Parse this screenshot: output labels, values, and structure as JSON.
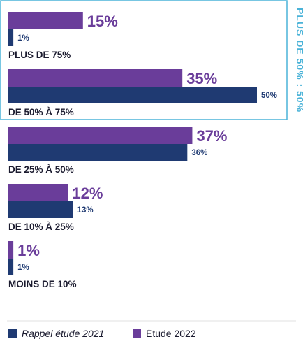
{
  "colors": {
    "series_2022": "#6a3d9a",
    "series_2021": "#1f3a72",
    "highlight_box": "#4ab3d8",
    "label_text": "#1b1b2f",
    "divider": "#e0e0e0"
  },
  "chart_data": {
    "type": "bar",
    "orientation": "horizontal",
    "categories": [
      "PLUS DE 75%",
      "DE 50% À 75%",
      "DE 25% À 50%",
      "DE 10% À 25%",
      "MOINS DE 10%"
    ],
    "series": [
      {
        "name": "Étude 2022",
        "values": [
          15,
          35,
          37,
          12,
          1
        ],
        "labels": [
          "15%",
          "35%",
          "37%",
          "12%",
          "1%"
        ],
        "color": "#6a3d9a"
      },
      {
        "name": "Rappel étude 2021",
        "values": [
          1,
          50,
          36,
          13,
          1
        ],
        "labels": [
          "1%",
          "50%",
          "36%",
          "13%",
          "1%"
        ],
        "color": "#1f3a72"
      }
    ],
    "xlim": [
      0,
      50
    ],
    "highlight": {
      "categories": [
        "PLUS DE 75%",
        "DE 50% À 75%"
      ],
      "label": "PLUS DE 50% : 50%"
    },
    "legend": {
      "placement": "bottom",
      "items": [
        {
          "label": "Rappel étude 2021",
          "color": "#1f3a72",
          "italic": true
        },
        {
          "label": "Étude 2022",
          "color": "#6a3d9a",
          "italic": false
        }
      ]
    },
    "grid": false
  }
}
